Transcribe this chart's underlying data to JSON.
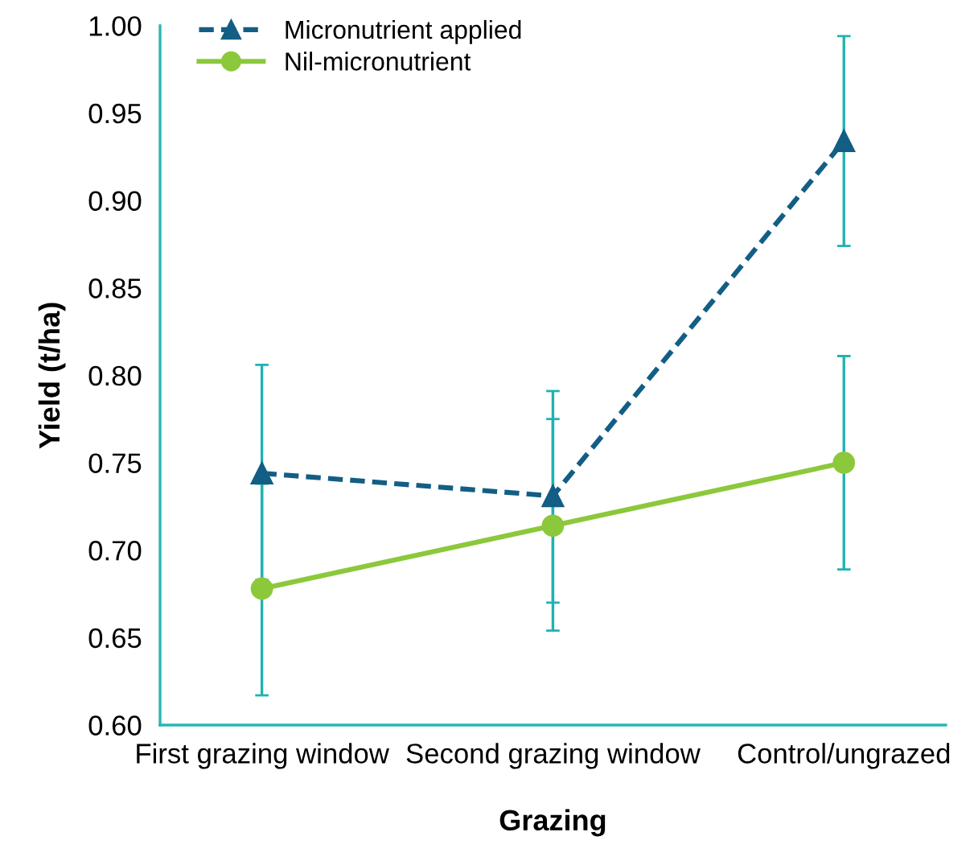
{
  "chart_data": {
    "type": "line",
    "xlabel": "Grazing",
    "ylabel": "Yield (t/ha)",
    "categories": [
      "First grazing window",
      "Second grazing window",
      "Control/ungrazed"
    ],
    "series": [
      {
        "name": "Micronutrient applied",
        "color": "#135e84",
        "marker": "triangle",
        "line_style": "dashed",
        "values": [
          0.744,
          0.731,
          0.934
        ],
        "errors": [
          [
            0.683,
            0.806
          ],
          [
            0.67,
            0.791
          ],
          [
            0.874,
            0.994
          ]
        ]
      },
      {
        "name": "Nil-micronutrient",
        "color": "#8cc83c",
        "marker": "circle",
        "line_style": "solid",
        "values": [
          0.678,
          0.714,
          0.75
        ],
        "errors": [
          [
            0.617,
            0.738
          ],
          [
            0.654,
            0.775
          ],
          [
            0.689,
            0.811
          ]
        ]
      }
    ],
    "ylim": [
      0.6,
      1.0
    ],
    "yticks": [
      {
        "value": 0.6,
        "label": "0.60"
      },
      {
        "value": 0.65,
        "label": "0.65"
      },
      {
        "value": 0.7,
        "label": "0.70"
      },
      {
        "value": 0.75,
        "label": "0.75"
      },
      {
        "value": 0.8,
        "label": "0.80"
      },
      {
        "value": 0.85,
        "label": "0.85"
      },
      {
        "value": 0.9,
        "label": "0.90"
      },
      {
        "value": 0.95,
        "label": "0.95"
      },
      {
        "value": 1.0,
        "label": "1.00"
      }
    ],
    "grid": false,
    "legend": "top left"
  }
}
